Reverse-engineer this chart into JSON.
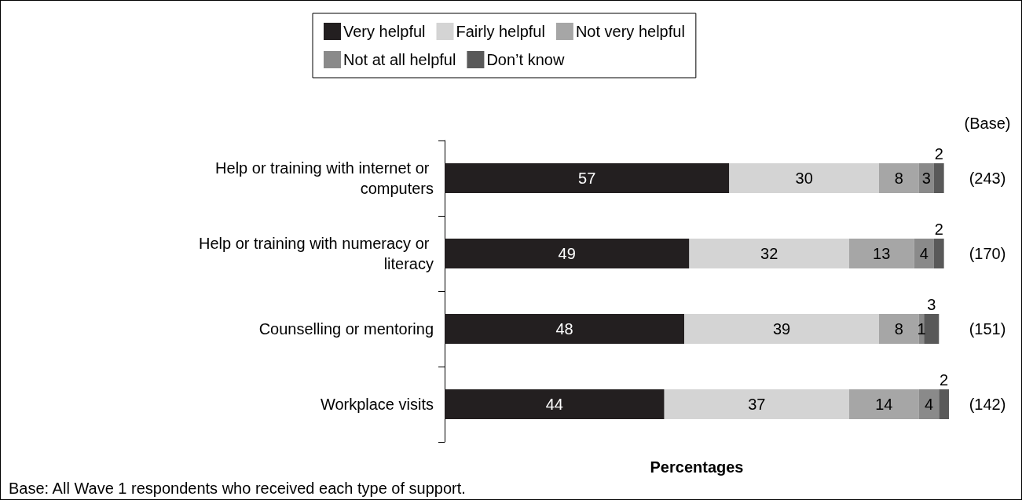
{
  "chart_data": {
    "type": "bar",
    "orientation": "horizontal",
    "stacked": true,
    "categories": [
      "Help or training with internet or computers",
      "Help or training with numeracy or literacy",
      "Counselling or mentoring",
      "Workplace visits"
    ],
    "series": [
      {
        "name": "Very helpful",
        "color": "#231f20",
        "values": [
          57,
          49,
          48,
          44
        ]
      },
      {
        "name": "Fairly helpful",
        "color": "#d4d4d4",
        "values": [
          30,
          32,
          39,
          37
        ]
      },
      {
        "name": "Not very helpful",
        "color": "#a6a6a6",
        "values": [
          8,
          13,
          8,
          14
        ]
      },
      {
        "name": "Not at all helpful",
        "color": "#8a8a8a",
        "values": [
          3,
          4,
          1,
          4
        ]
      },
      {
        "name": "Don’t know",
        "color": "#595959",
        "values": [
          2,
          2,
          3,
          2
        ]
      }
    ],
    "xlim": [
      0,
      101
    ],
    "tick_labels": "y",
    "data_labels": true,
    "legend": "top",
    "grid": false,
    "xlabel": "Percentages",
    "y2label": "(Base)",
    "annotations": [
      "(243)",
      "(170)",
      "(151)",
      "(142)",
      "Base: All Wave 1 respondents who received each type of support."
    ]
  }
}
